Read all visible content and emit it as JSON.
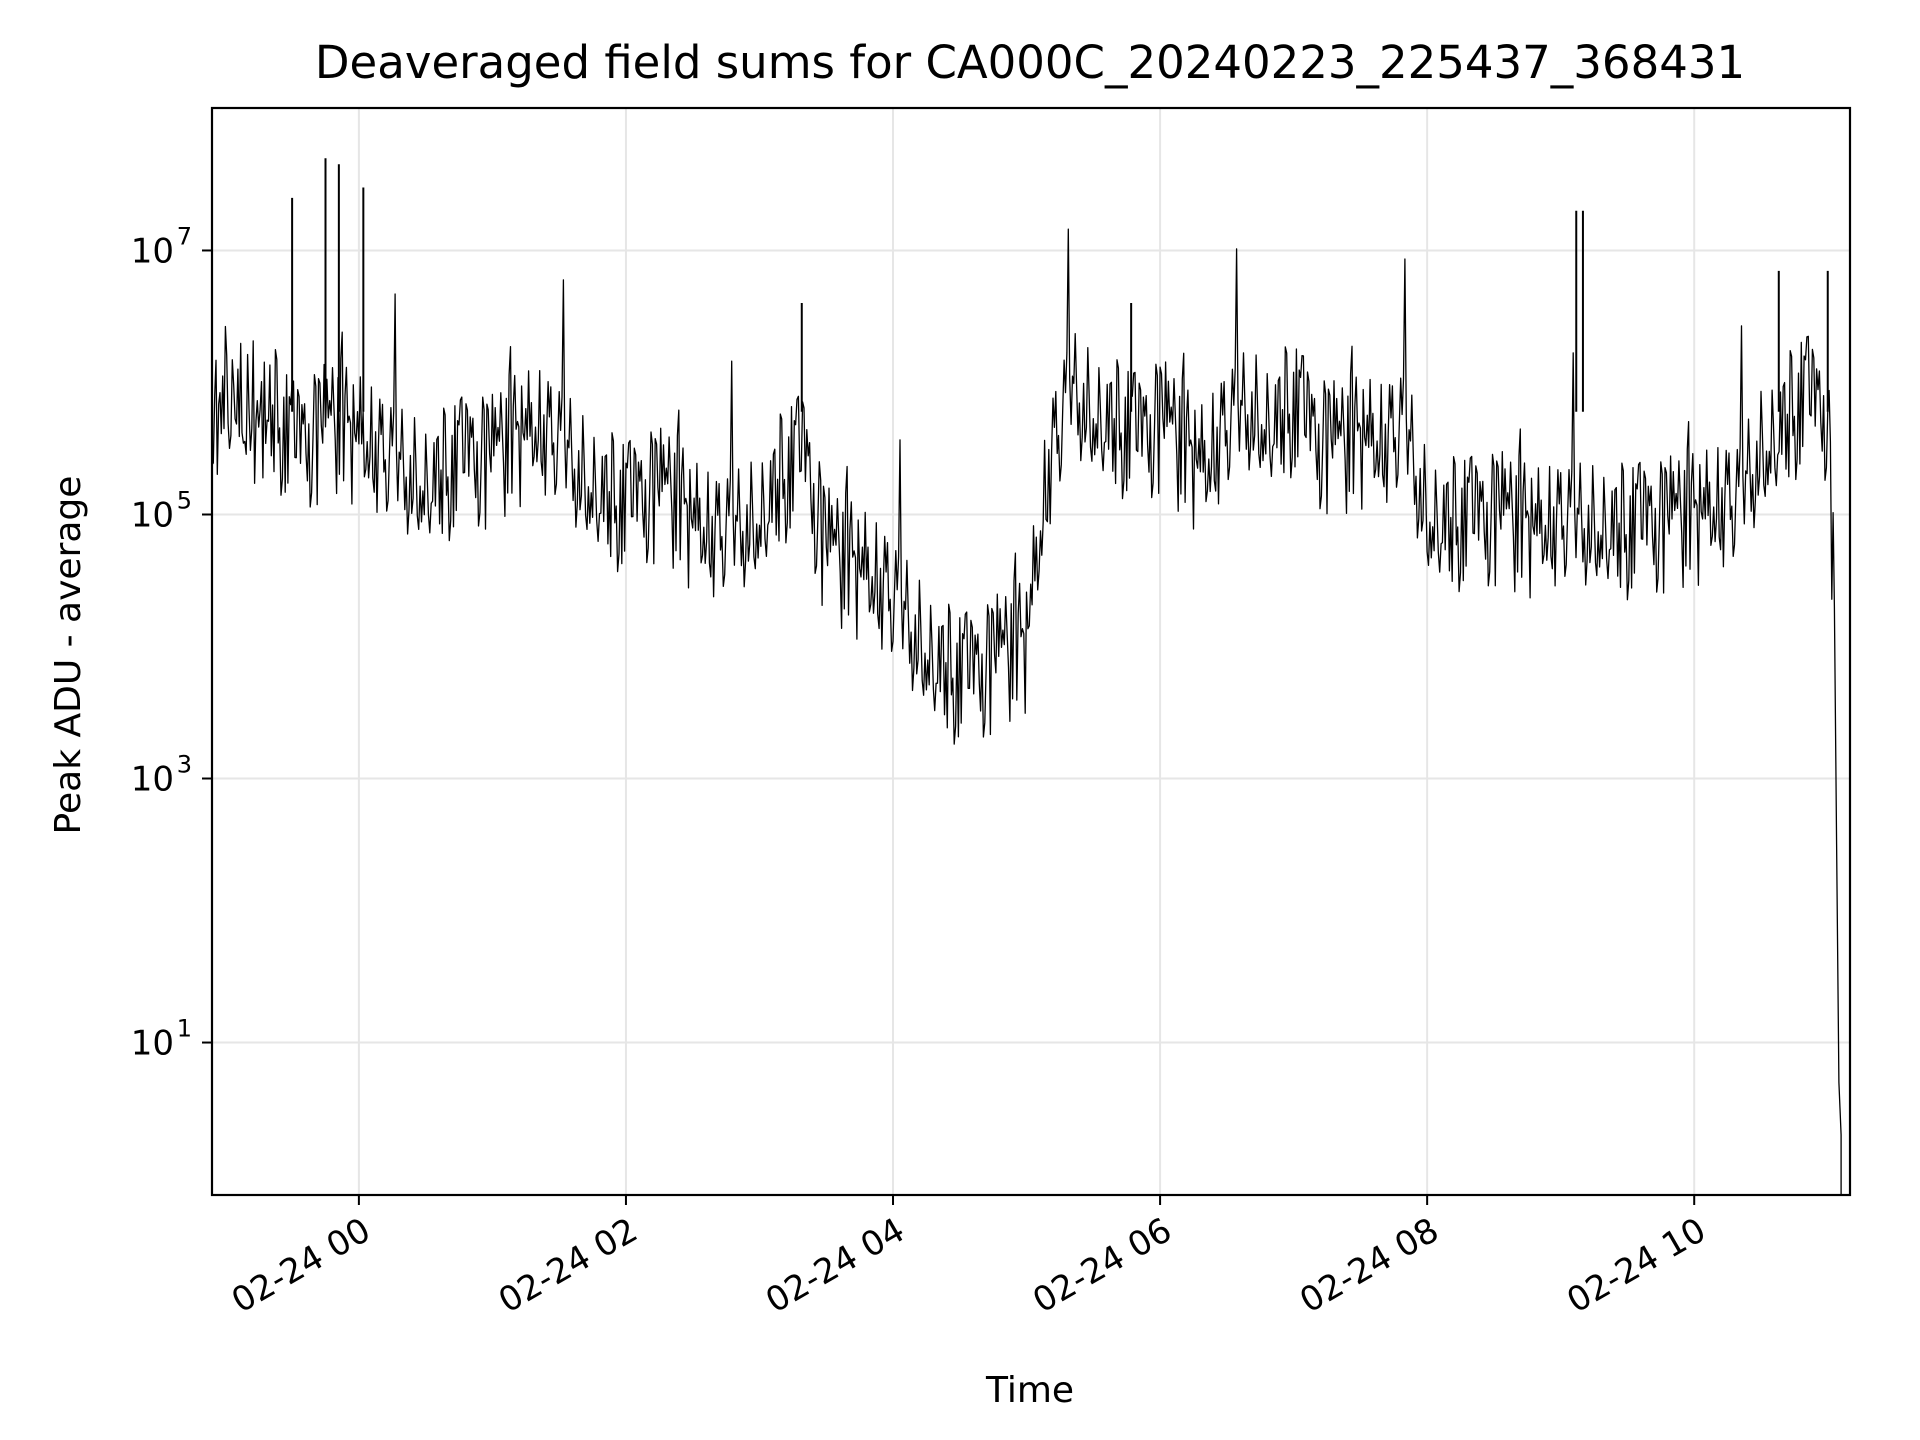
{
  "chart_data": {
    "type": "line",
    "title": "Deaveraged field sums for CA000C_20240223_225437_368431",
    "xlabel": "Time",
    "ylabel": "Peak ADU - average",
    "yscale": "log",
    "ylim": [
      0.7,
      120000000.0
    ],
    "xlim": [
      "2024-02-23 22:54",
      "2024-02-24 11:10"
    ],
    "grid": true,
    "line_color": "#000000",
    "x_ticks": [
      {
        "t": "2024-02-24 00:00",
        "label": "02-24 00"
      },
      {
        "t": "2024-02-24 02:00",
        "label": "02-24 02"
      },
      {
        "t": "2024-02-24 04:00",
        "label": "02-24 04"
      },
      {
        "t": "2024-02-24 06:00",
        "label": "02-24 06"
      },
      {
        "t": "2024-02-24 08:00",
        "label": "02-24 08"
      },
      {
        "t": "2024-02-24 10:00",
        "label": "02-24 10"
      }
    ],
    "y_ticks": [
      {
        "value": 10,
        "base": "10",
        "exp": "1"
      },
      {
        "value": 1000,
        "base": "10",
        "exp": "3"
      },
      {
        "value": 100000,
        "base": "10",
        "exp": "5"
      },
      {
        "value": 10000000,
        "base": "10",
        "exp": "7"
      }
    ],
    "series": [
      {
        "x": [
          "2024-02-23 22:54",
          "2024-02-23 23:00",
          "2024-02-23 23:10",
          "2024-02-23 23:20",
          "2024-02-23 23:30",
          "2024-02-23 23:40",
          "2024-02-23 23:50",
          "2024-02-24 00:00",
          "2024-02-24 00:10",
          "2024-02-24 00:20",
          "2024-02-24 00:30",
          "2024-02-24 00:40",
          "2024-02-24 00:50",
          "2024-02-24 01:00",
          "2024-02-24 01:10",
          "2024-02-24 01:20",
          "2024-02-24 01:30",
          "2024-02-24 01:40",
          "2024-02-24 01:50",
          "2024-02-24 02:00",
          "2024-02-24 02:10",
          "2024-02-24 02:20",
          "2024-02-24 02:30",
          "2024-02-24 02:40",
          "2024-02-24 02:50",
          "2024-02-24 03:00",
          "2024-02-24 03:10",
          "2024-02-24 03:20",
          "2024-02-24 03:30",
          "2024-02-24 03:40",
          "2024-02-24 03:50",
          "2024-02-24 04:00",
          "2024-02-24 04:10",
          "2024-02-24 04:20",
          "2024-02-24 04:30",
          "2024-02-24 04:40",
          "2024-02-24 04:50",
          "2024-02-24 05:00",
          "2024-02-24 05:10",
          "2024-02-24 05:20",
          "2024-02-24 05:30",
          "2024-02-24 05:40",
          "2024-02-24 05:50",
          "2024-02-24 06:00",
          "2024-02-24 06:10",
          "2024-02-24 06:20",
          "2024-02-24 06:30",
          "2024-02-24 06:40",
          "2024-02-24 06:50",
          "2024-02-24 07:00",
          "2024-02-24 07:10",
          "2024-02-24 07:20",
          "2024-02-24 07:30",
          "2024-02-24 07:40",
          "2024-02-24 07:50",
          "2024-02-24 08:00",
          "2024-02-24 08:10",
          "2024-02-24 08:20",
          "2024-02-24 08:30",
          "2024-02-24 08:40",
          "2024-02-24 08:50",
          "2024-02-24 09:00",
          "2024-02-24 09:10",
          "2024-02-24 09:20",
          "2024-02-24 09:30",
          "2024-02-24 09:40",
          "2024-02-24 09:50",
          "2024-02-24 10:00",
          "2024-02-24 10:10",
          "2024-02-24 10:20",
          "2024-02-24 10:30",
          "2024-02-24 10:40",
          "2024-02-24 10:50",
          "2024-02-24 11:00",
          "2024-02-24 11:03",
          "2024-02-24 11:05",
          "2024-02-24 11:06"
        ],
        "y": [
          600000,
          800000,
          500000,
          700000,
          350000,
          400000,
          450000,
          350000,
          250000,
          200000,
          180000,
          220000,
          300000,
          250000,
          350000,
          400000,
          300000,
          200000,
          150000,
          120000,
          150000,
          130000,
          80000,
          60000,
          70000,
          100000,
          200000,
          300000,
          50000,
          40000,
          30000,
          20000,
          12000,
          8000,
          6000,
          7000,
          8000,
          10000,
          200000,
          800000,
          600000,
          500000,
          400000,
          500000,
          300000,
          200000,
          400000,
          600000,
          500000,
          700000,
          400000,
          300000,
          350000,
          300000,
          400000,
          100000,
          90000,
          95000,
          100000,
          80000,
          70000,
          75000,
          80000,
          85000,
          80000,
          90000,
          85000,
          90000,
          100000,
          110000,
          300000,
          500000,
          800000,
          600000,
          20000,
          5,
          2
        ]
      }
    ],
    "spikes": [
      {
        "x": "2024-02-23 23:30",
        "y": 25000000
      },
      {
        "x": "2024-02-23 23:45",
        "y": 50000000
      },
      {
        "x": "2024-02-23 23:51",
        "y": 45000000
      },
      {
        "x": "2024-02-24 00:02",
        "y": 30000000
      },
      {
        "x": "2024-02-24 03:19",
        "y": 4000000
      },
      {
        "x": "2024-02-24 05:47",
        "y": 4000000
      },
      {
        "x": "2024-02-24 09:07",
        "y": 20000000
      },
      {
        "x": "2024-02-24 09:10",
        "y": 20000000
      },
      {
        "x": "2024-02-24 10:38",
        "y": 7000000
      },
      {
        "x": "2024-02-24 11:00",
        "y": 7000000
      }
    ]
  }
}
